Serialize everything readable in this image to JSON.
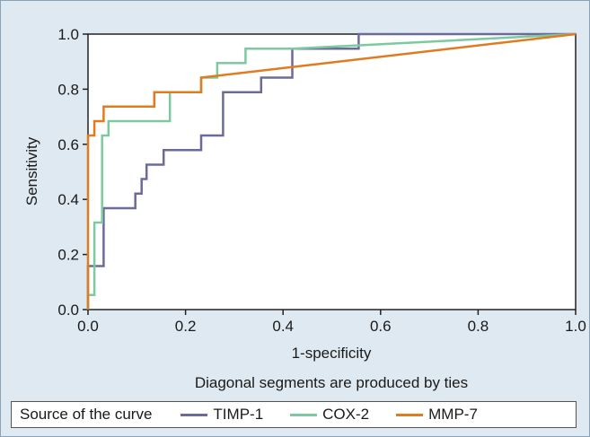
{
  "chart_data": {
    "type": "line",
    "title": "",
    "xlabel": "1-specificity",
    "ylabel": "Sensitivity",
    "note": "Diagonal segments are produced by ties",
    "xlim": [
      0,
      1
    ],
    "ylim": [
      0,
      1
    ],
    "xticks": [
      "0.0",
      "0.2",
      "0.4",
      "0.6",
      "0.8",
      "1.0"
    ],
    "yticks": [
      "0.0",
      "0.2",
      "0.4",
      "0.6",
      "0.8",
      "1.0"
    ],
    "grid": false,
    "legend": {
      "title": "Source of the curve",
      "placement": "bottom"
    },
    "series": [
      {
        "name": "TIMP-1",
        "color": "#6b6b9a",
        "points": [
          [
            0,
            0
          ],
          [
            0,
            0.158
          ],
          [
            0.032,
            0.158
          ],
          [
            0.032,
            0.368
          ],
          [
            0.097,
            0.368
          ],
          [
            0.097,
            0.421
          ],
          [
            0.11,
            0.421
          ],
          [
            0.11,
            0.474
          ],
          [
            0.12,
            0.474
          ],
          [
            0.12,
            0.526
          ],
          [
            0.155,
            0.526
          ],
          [
            0.155,
            0.579
          ],
          [
            0.232,
            0.579
          ],
          [
            0.232,
            0.632
          ],
          [
            0.277,
            0.632
          ],
          [
            0.277,
            0.789
          ],
          [
            0.355,
            0.789
          ],
          [
            0.355,
            0.842
          ],
          [
            0.419,
            0.842
          ],
          [
            0.419,
            0.947
          ],
          [
            0.555,
            0.947
          ],
          [
            0.555,
            1.0
          ],
          [
            1.0,
            1.0
          ]
        ]
      },
      {
        "name": "COX-2",
        "color": "#7dc9a0",
        "points": [
          [
            0,
            0
          ],
          [
            0,
            0.053
          ],
          [
            0.013,
            0.053
          ],
          [
            0.013,
            0.316
          ],
          [
            0.029,
            0.316
          ],
          [
            0.029,
            0.632
          ],
          [
            0.042,
            0.632
          ],
          [
            0.042,
            0.684
          ],
          [
            0.168,
            0.684
          ],
          [
            0.168,
            0.789
          ],
          [
            0.232,
            0.789
          ],
          [
            0.232,
            0.842
          ],
          [
            0.265,
            0.842
          ],
          [
            0.265,
            0.895
          ],
          [
            0.323,
            0.895
          ],
          [
            0.323,
            0.947
          ],
          [
            0.42,
            0.947
          ],
          [
            1.0,
            1.0
          ]
        ]
      },
      {
        "name": "MMP-7",
        "color": "#e07b1f",
        "points": [
          [
            0,
            0
          ],
          [
            0,
            0.632
          ],
          [
            0.013,
            0.632
          ],
          [
            0.013,
            0.684
          ],
          [
            0.032,
            0.684
          ],
          [
            0.032,
            0.737
          ],
          [
            0.136,
            0.737
          ],
          [
            0.136,
            0.789
          ],
          [
            0.232,
            0.789
          ],
          [
            0.232,
            0.842
          ],
          [
            1.0,
            1.0
          ]
        ]
      }
    ]
  },
  "colors": {
    "background": "#dfe9f1",
    "plot_background": "#ffffff"
  }
}
